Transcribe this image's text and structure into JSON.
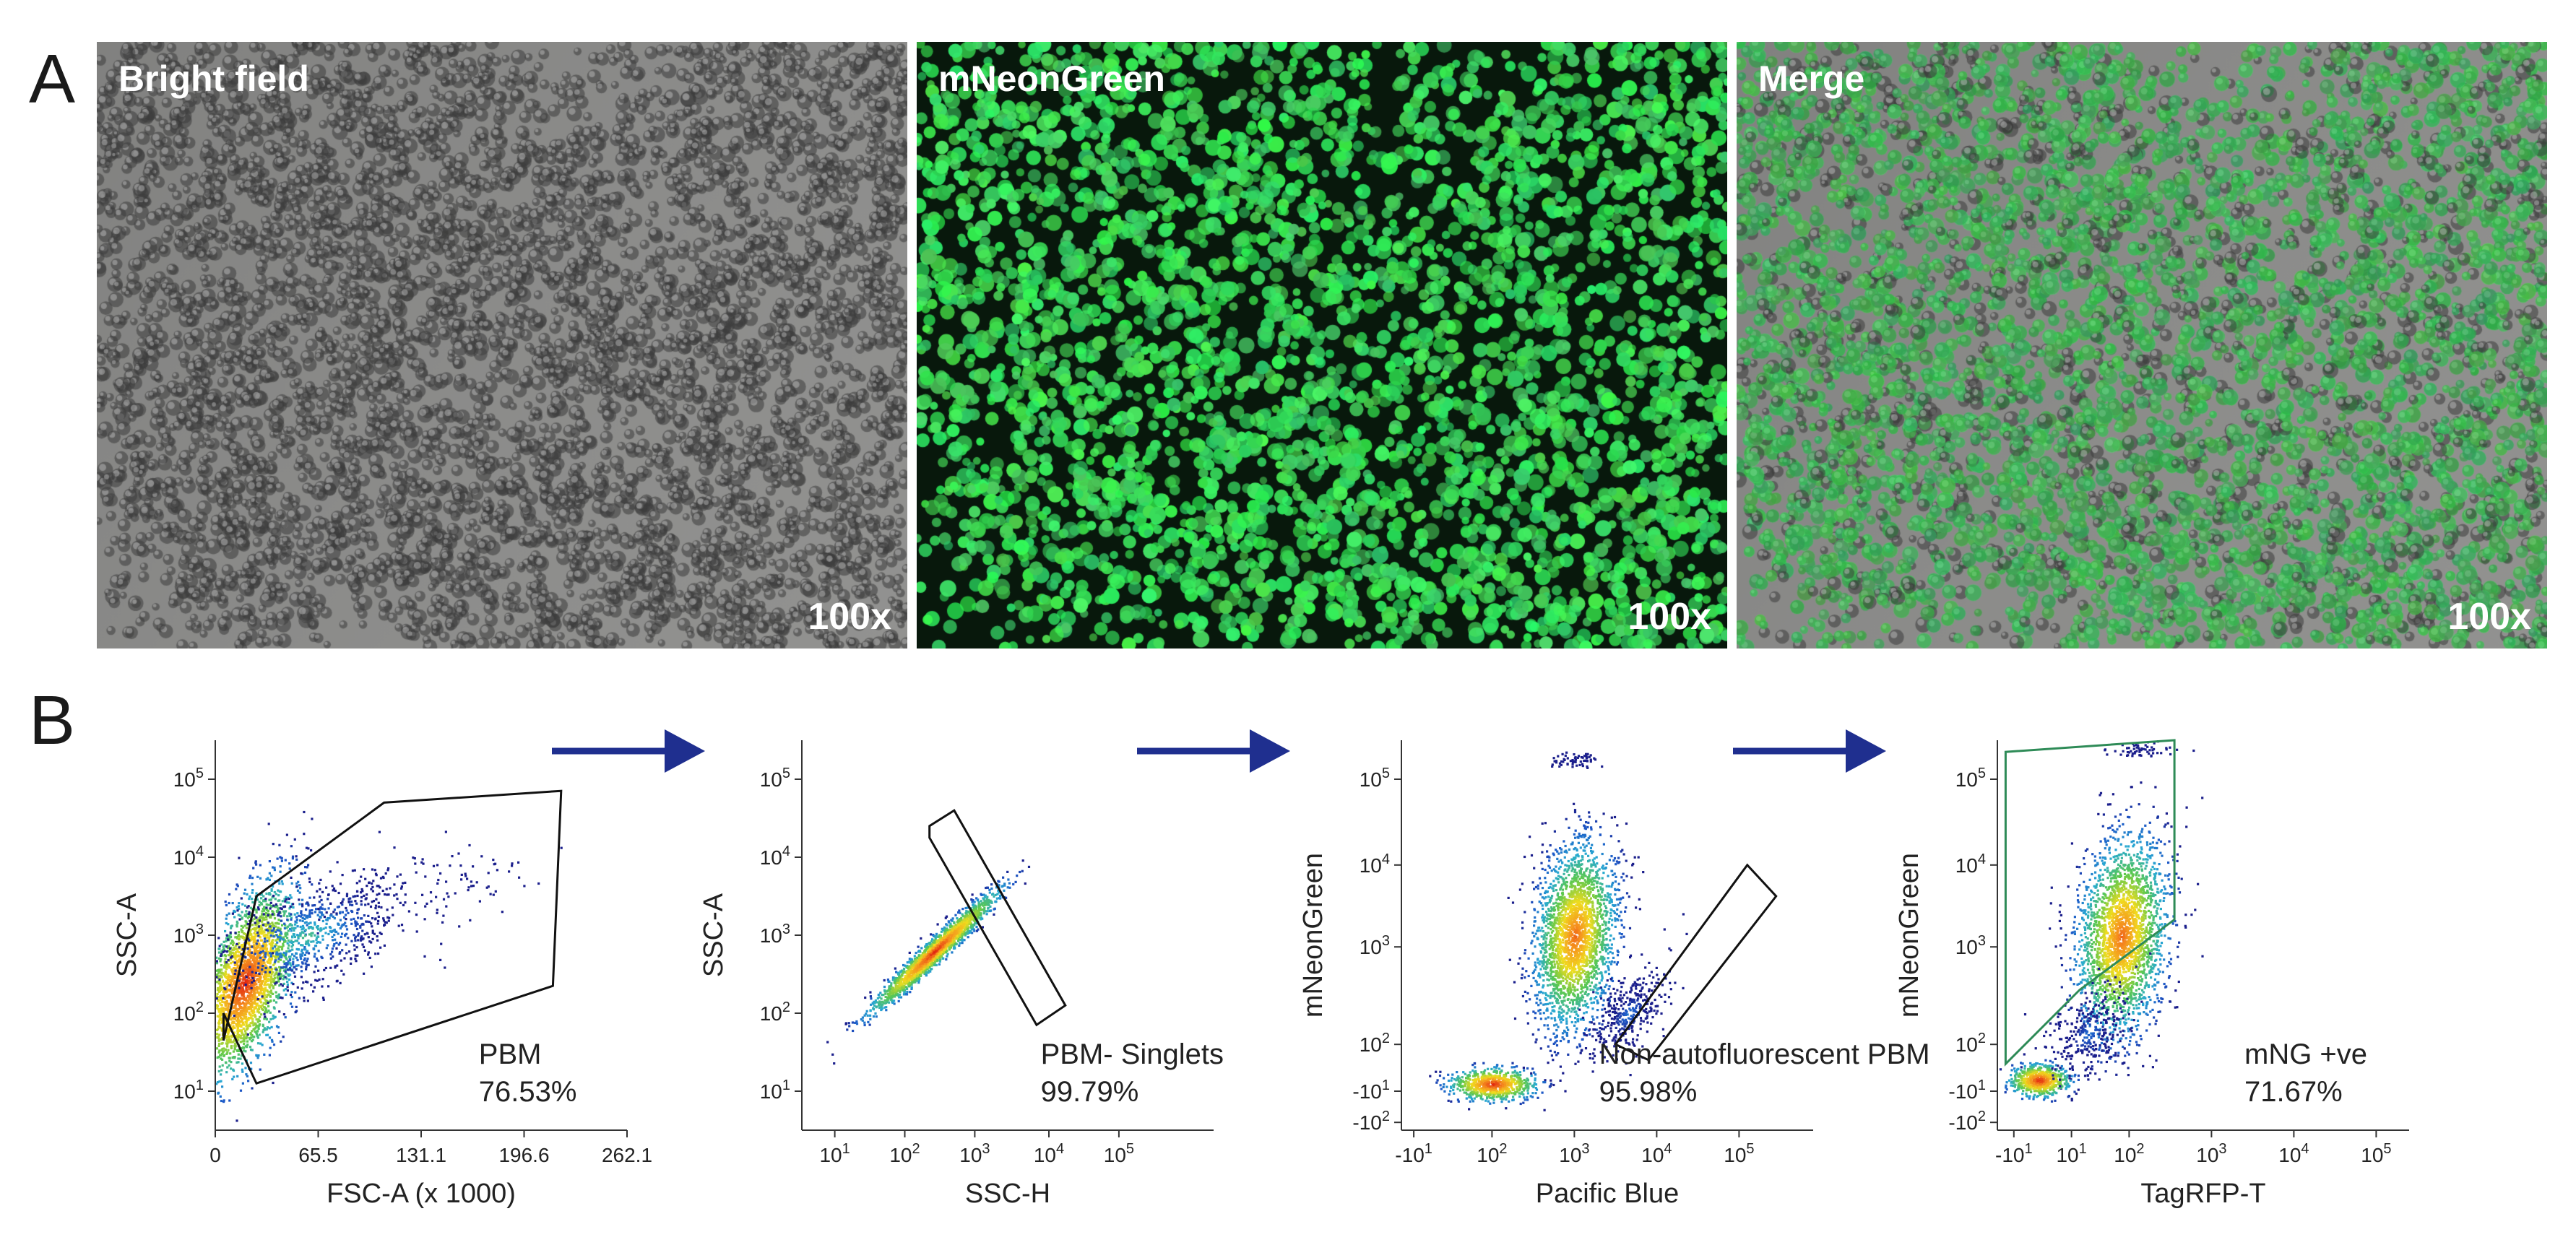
{
  "panels": {
    "a": "A",
    "b": "B"
  },
  "microscopy": [
    {
      "label": "Bright field",
      "magnification": "100x",
      "channel": "brightfield"
    },
    {
      "label": "mNeonGreen",
      "magnification": "100x",
      "channel": "fluorescence"
    },
    {
      "label": "Merge",
      "magnification": "100x",
      "channel": "merge"
    }
  ],
  "colors": {
    "gate_black": "#111111",
    "gate_green": "#2e8b57",
    "arrow": "#1f2f8f",
    "density_low": "#1b1f8c",
    "density_high": "#e02010",
    "fluor_green": "#33dd55"
  },
  "chart_data": [
    {
      "type": "scatter",
      "plot_kind": "density",
      "xlabel": "FSC-A (x 1000)",
      "ylabel": "SSC-A",
      "x_scale": "linear",
      "y_scale": "log",
      "x_ticks": [
        "0",
        "65.5",
        "131.1",
        "196.6",
        "262.1"
      ],
      "y_ticks": [
        "10^1",
        "10^2",
        "10^3",
        "10^4",
        "10^5"
      ],
      "gate": {
        "name": "PBM",
        "percent": "76.53%",
        "color": "black"
      },
      "populations": [
        {
          "x_center": 28,
          "y_center": 400,
          "spread": "dense diagonal cloud"
        }
      ]
    },
    {
      "type": "scatter",
      "plot_kind": "density",
      "xlabel": "SSC-H",
      "ylabel": "SSC-A",
      "x_scale": "log",
      "y_scale": "log",
      "x_ticks": [
        "10^1",
        "10^2",
        "10^3",
        "10^4",
        "10^5"
      ],
      "y_ticks": [
        "10^1",
        "10^2",
        "10^3",
        "10^4",
        "10^5"
      ],
      "gate": {
        "name": "PBM- Singlets",
        "percent": "99.79%",
        "color": "black"
      },
      "populations": [
        {
          "x_center": 600,
          "y_center": 600,
          "spread": "tight diagonal"
        }
      ]
    },
    {
      "type": "scatter",
      "plot_kind": "density",
      "xlabel": "Pacific Blue",
      "ylabel": "mNeonGreen",
      "x_scale": "biexponential",
      "y_scale": "biexponential",
      "x_ticks": [
        "-10^1",
        "10^2",
        "10^3",
        "10^4",
        "10^5"
      ],
      "y_ticks": [
        "-10^2",
        "-10^1",
        "10^2",
        "10^3",
        "10^4",
        "10^5"
      ],
      "gate": {
        "name": "Non-autofluorescent PBM",
        "percent": "95.98%",
        "color": "black"
      },
      "populations": [
        {
          "x_center": 600,
          "y_center": 1500,
          "spread": "main cloud"
        },
        {
          "x_center": 100,
          "y_center": -5,
          "spread": "low cluster"
        }
      ]
    },
    {
      "type": "scatter",
      "plot_kind": "density",
      "xlabel": "TagRFP-T",
      "ylabel": "mNeonGreen",
      "x_scale": "biexponential",
      "y_scale": "biexponential",
      "x_ticks": [
        "-10^1",
        "10^1",
        "10^2",
        "10^3",
        "10^4",
        "10^5"
      ],
      "y_ticks": [
        "-10^2",
        "-10^1",
        "10^2",
        "10^3",
        "10^4",
        "10^5"
      ],
      "gate": {
        "name": "mNG +ve",
        "percent": "71.67%",
        "color": "green"
      },
      "populations": [
        {
          "x_center": 200,
          "y_center": 1500,
          "spread": "main cloud"
        },
        {
          "x_center": 5,
          "y_center": -5,
          "spread": "low cluster"
        }
      ]
    }
  ]
}
